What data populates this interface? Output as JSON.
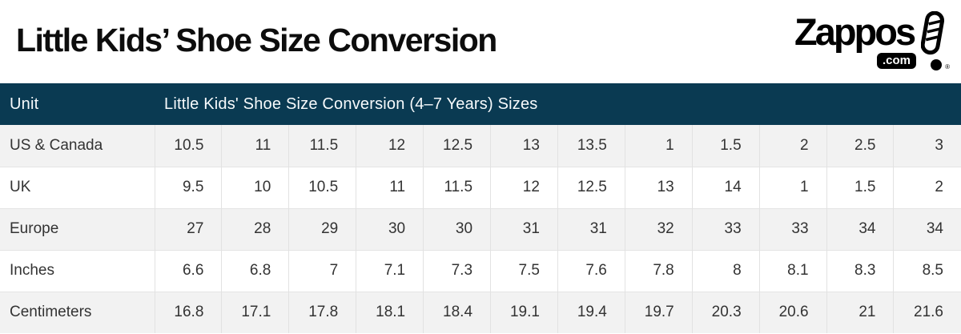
{
  "header": {
    "title": "Little Kids’ Shoe Size Conversion"
  },
  "logo": {
    "brand": "Zappos",
    "domain": ".com",
    "registered": "®",
    "icon": "shoe-sole-exclamation-icon"
  },
  "colors": {
    "table_header_bg": "#0a3a52",
    "table_header_text": "#f7fafc",
    "row_alt_bg": "#f2f2f2",
    "row_bg": "#ffffff",
    "cell_border": "#e2e2e2",
    "cell_text": "#333333",
    "brand_black": "#000000"
  },
  "chart_data": {
    "type": "table",
    "title": "Little Kids’ Shoe Size Conversion",
    "corner_header": "Unit",
    "span_header": "Little Kids' Shoe Size Conversion (4–7 Years) Sizes",
    "rows": [
      {
        "label": "US & Canada",
        "values": [
          "10.5",
          "11",
          "11.5",
          "12",
          "12.5",
          "13",
          "13.5",
          "1",
          "1.5",
          "2",
          "2.5",
          "3"
        ]
      },
      {
        "label": "UK",
        "values": [
          "9.5",
          "10",
          "10.5",
          "11",
          "11.5",
          "12",
          "12.5",
          "13",
          "14",
          "1",
          "1.5",
          "2"
        ]
      },
      {
        "label": "Europe",
        "values": [
          "27",
          "28",
          "29",
          "30",
          "30",
          "31",
          "31",
          "32",
          "33",
          "33",
          "34",
          "34"
        ]
      },
      {
        "label": "Inches",
        "values": [
          "6.6",
          "6.8",
          "7",
          "7.1",
          "7.3",
          "7.5",
          "7.6",
          "7.8",
          "8",
          "8.1",
          "8.3",
          "8.5"
        ]
      },
      {
        "label": "Centimeters",
        "values": [
          "16.8",
          "17.1",
          "17.8",
          "18.1",
          "18.4",
          "19.1",
          "19.4",
          "19.7",
          "20.3",
          "20.6",
          "21",
          "21.6"
        ]
      }
    ]
  }
}
